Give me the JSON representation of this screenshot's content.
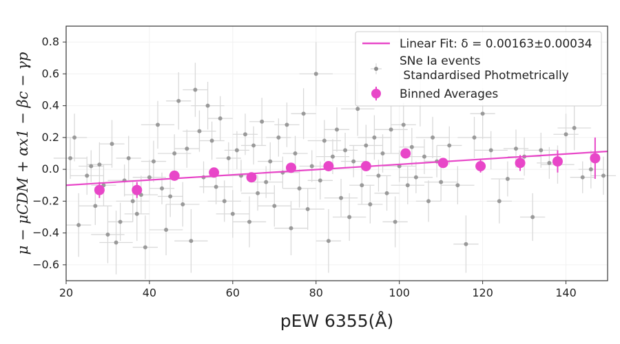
{
  "chart_data": {
    "type": "scatter",
    "xlabel": "pEW 6355(Å)",
    "ylabel": "μ − μCDM + αx1 − βc − γp",
    "xlim": [
      20,
      150
    ],
    "ylim": [
      -0.7,
      0.9
    ],
    "x_ticks": [
      20,
      40,
      60,
      80,
      100,
      120,
      140
    ],
    "y_ticks": [
      -0.6,
      -0.4,
      -0.2,
      0.0,
      0.2,
      0.4,
      0.6,
      0.8
    ],
    "grid": true,
    "legend_position": "top-right",
    "series": [
      {
        "name": "SNe Ia events\n Standardised Photmetrically",
        "kind": "errorbar-points",
        "color": "#8c8c8c",
        "errorbar_color": "#d9d9d9",
        "points": [
          {
            "x": 21,
            "y": 0.07,
            "xerr": 4,
            "yerr": 0.13
          },
          {
            "x": 22,
            "y": 0.2,
            "xerr": 3,
            "yerr": 0.15
          },
          {
            "x": 23,
            "y": -0.35,
            "xerr": 3,
            "yerr": 0.2
          },
          {
            "x": 25,
            "y": -0.04,
            "xerr": 4,
            "yerr": 0.12
          },
          {
            "x": 26,
            "y": 0.02,
            "xerr": 3,
            "yerr": 0.1
          },
          {
            "x": 27,
            "y": -0.23,
            "xerr": 4,
            "yerr": 0.12
          },
          {
            "x": 28,
            "y": 0.03,
            "xerr": 3,
            "yerr": 0.14
          },
          {
            "x": 29,
            "y": -0.1,
            "xerr": 3,
            "yerr": 0.13
          },
          {
            "x": 30,
            "y": -0.41,
            "xerr": 4,
            "yerr": 0.18
          },
          {
            "x": 31,
            "y": 0.16,
            "xerr": 3,
            "yerr": 0.15
          },
          {
            "x": 32,
            "y": -0.46,
            "xerr": 4,
            "yerr": 0.2
          },
          {
            "x": 33,
            "y": -0.33,
            "xerr": 3,
            "yerr": 0.12
          },
          {
            "x": 34,
            "y": -0.07,
            "xerr": 4,
            "yerr": 0.1
          },
          {
            "x": 35,
            "y": 0.07,
            "xerr": 3,
            "yerr": 0.14
          },
          {
            "x": 36,
            "y": -0.2,
            "xerr": 4,
            "yerr": 0.13
          },
          {
            "x": 37,
            "y": -0.28,
            "xerr": 3,
            "yerr": 0.17
          },
          {
            "x": 38,
            "y": -0.16,
            "xerr": 4,
            "yerr": 0.12
          },
          {
            "x": 39,
            "y": -0.49,
            "xerr": 3,
            "yerr": 0.2
          },
          {
            "x": 40,
            "y": -0.05,
            "xerr": 4,
            "yerr": 0.11
          },
          {
            "x": 41,
            "y": 0.05,
            "xerr": 3,
            "yerr": 0.13
          },
          {
            "x": 42,
            "y": 0.28,
            "xerr": 4,
            "yerr": 0.15
          },
          {
            "x": 43,
            "y": -0.12,
            "xerr": 3,
            "yerr": 0.1
          },
          {
            "x": 44,
            "y": -0.38,
            "xerr": 4,
            "yerr": 0.16
          },
          {
            "x": 45,
            "y": -0.17,
            "xerr": 3,
            "yerr": 0.13
          },
          {
            "x": 46,
            "y": 0.1,
            "xerr": 4,
            "yerr": 0.12
          },
          {
            "x": 47,
            "y": 0.43,
            "xerr": 3,
            "yerr": 0.18
          },
          {
            "x": 48,
            "y": -0.22,
            "xerr": 4,
            "yerr": 0.14
          },
          {
            "x": 49,
            "y": 0.13,
            "xerr": 3,
            "yerr": 0.12
          },
          {
            "x": 50,
            "y": -0.45,
            "xerr": 4,
            "yerr": 0.2
          },
          {
            "x": 51,
            "y": 0.5,
            "xerr": 3,
            "yerr": 0.17
          },
          {
            "x": 52,
            "y": 0.24,
            "xerr": 4,
            "yerr": 0.13
          },
          {
            "x": 53,
            "y": -0.05,
            "xerr": 3,
            "yerr": 0.1
          },
          {
            "x": 54,
            "y": 0.4,
            "xerr": 4,
            "yerr": 0.15
          },
          {
            "x": 55,
            "y": 0.18,
            "xerr": 3,
            "yerr": 0.12
          },
          {
            "x": 56,
            "y": -0.11,
            "xerr": 4,
            "yerr": 0.11
          },
          {
            "x": 57,
            "y": 0.32,
            "xerr": 3,
            "yerr": 0.14
          },
          {
            "x": 58,
            "y": -0.2,
            "xerr": 4,
            "yerr": 0.13
          },
          {
            "x": 59,
            "y": 0.07,
            "xerr": 3,
            "yerr": 0.1
          },
          {
            "x": 60,
            "y": -0.28,
            "xerr": 4,
            "yerr": 0.15
          },
          {
            "x": 61,
            "y": 0.12,
            "xerr": 3,
            "yerr": 0.12
          },
          {
            "x": 62,
            "y": -0.04,
            "xerr": 4,
            "yerr": 0.1
          },
          {
            "x": 63,
            "y": 0.22,
            "xerr": 3,
            "yerr": 0.13
          },
          {
            "x": 64,
            "y": -0.33,
            "xerr": 4,
            "yerr": 0.16
          },
          {
            "x": 65,
            "y": 0.15,
            "xerr": 3,
            "yerr": 0.12
          },
          {
            "x": 66,
            "y": -0.15,
            "xerr": 4,
            "yerr": 0.11
          },
          {
            "x": 67,
            "y": 0.3,
            "xerr": 3,
            "yerr": 0.15
          },
          {
            "x": 68,
            "y": -0.08,
            "xerr": 4,
            "yerr": 0.1
          },
          {
            "x": 69,
            "y": 0.05,
            "xerr": 3,
            "yerr": 0.12
          },
          {
            "x": 70,
            "y": -0.23,
            "xerr": 4,
            "yerr": 0.13
          },
          {
            "x": 71,
            "y": 0.2,
            "xerr": 3,
            "yerr": 0.12
          },
          {
            "x": 72,
            "y": -0.02,
            "xerr": 4,
            "yerr": 0.1
          },
          {
            "x": 73,
            "y": 0.28,
            "xerr": 3,
            "yerr": 0.14
          },
          {
            "x": 74,
            "y": -0.37,
            "xerr": 4,
            "yerr": 0.17
          },
          {
            "x": 75,
            "y": 0.1,
            "xerr": 3,
            "yerr": 0.11
          },
          {
            "x": 76,
            "y": -0.12,
            "xerr": 4,
            "yerr": 0.12
          },
          {
            "x": 77,
            "y": 0.35,
            "xerr": 3,
            "yerr": 0.16
          },
          {
            "x": 78,
            "y": -0.25,
            "xerr": 4,
            "yerr": 0.13
          },
          {
            "x": 79,
            "y": 0.02,
            "xerr": 3,
            "yerr": 0.1
          },
          {
            "x": 80,
            "y": 0.6,
            "xerr": 4,
            "yerr": 0.2
          },
          {
            "x": 81,
            "y": -0.07,
            "xerr": 3,
            "yerr": 0.12
          },
          {
            "x": 82,
            "y": 0.18,
            "xerr": 4,
            "yerr": 0.13
          },
          {
            "x": 83,
            "y": -0.45,
            "xerr": 3,
            "yerr": 0.2
          },
          {
            "x": 84,
            "y": 0.08,
            "xerr": 4,
            "yerr": 0.11
          },
          {
            "x": 85,
            "y": 0.25,
            "xerr": 3,
            "yerr": 0.14
          },
          {
            "x": 86,
            "y": -0.18,
            "xerr": 4,
            "yerr": 0.12
          },
          {
            "x": 87,
            "y": 0.12,
            "xerr": 3,
            "yerr": 0.11
          },
          {
            "x": 88,
            "y": -0.3,
            "xerr": 4,
            "yerr": 0.15
          },
          {
            "x": 89,
            "y": 0.05,
            "xerr": 3,
            "yerr": 0.1
          },
          {
            "x": 90,
            "y": 0.38,
            "xerr": 4,
            "yerr": 0.17
          },
          {
            "x": 91,
            "y": -0.1,
            "xerr": 3,
            "yerr": 0.12
          },
          {
            "x": 92,
            "y": 0.15,
            "xerr": 4,
            "yerr": 0.13
          },
          {
            "x": 93,
            "y": -0.22,
            "xerr": 3,
            "yerr": 0.12
          },
          {
            "x": 94,
            "y": 0.2,
            "xerr": 4,
            "yerr": 0.14
          },
          {
            "x": 95,
            "y": -0.04,
            "xerr": 3,
            "yerr": 0.1
          },
          {
            "x": 96,
            "y": 0.1,
            "xerr": 4,
            "yerr": 0.12
          },
          {
            "x": 97,
            "y": -0.15,
            "xerr": 3,
            "yerr": 0.11
          },
          {
            "x": 98,
            "y": 0.25,
            "xerr": 4,
            "yerr": 0.15
          },
          {
            "x": 99,
            "y": -0.33,
            "xerr": 3,
            "yerr": 0.16
          },
          {
            "x": 100,
            "y": 0.02,
            "xerr": 4,
            "yerr": 0.1
          },
          {
            "x": 101,
            "y": 0.28,
            "xerr": 3,
            "yerr": 0.14
          },
          {
            "x": 102,
            "y": -0.1,
            "xerr": 4,
            "yerr": 0.12
          },
          {
            "x": 103,
            "y": 0.14,
            "xerr": 3,
            "yerr": 0.12
          },
          {
            "x": 104,
            "y": -0.05,
            "xerr": 4,
            "yerr": 0.1
          },
          {
            "x": 105,
            "y": 0.45,
            "xerr": 3,
            "yerr": 0.18
          },
          {
            "x": 106,
            "y": 0.08,
            "xerr": 4,
            "yerr": 0.11
          },
          {
            "x": 107,
            "y": -0.2,
            "xerr": 3,
            "yerr": 0.13
          },
          {
            "x": 108,
            "y": 0.2,
            "xerr": 4,
            "yerr": 0.13
          },
          {
            "x": 109,
            "y": 0.05,
            "xerr": 3,
            "yerr": 0.1
          },
          {
            "x": 110,
            "y": -0.08,
            "xerr": 4,
            "yerr": 0.12
          },
          {
            "x": 112,
            "y": 0.15,
            "xerr": 3,
            "yerr": 0.12
          },
          {
            "x": 114,
            "y": -0.1,
            "xerr": 4,
            "yerr": 0.12
          },
          {
            "x": 116,
            "y": -0.47,
            "xerr": 3,
            "yerr": 0.18
          },
          {
            "x": 118,
            "y": 0.2,
            "xerr": 4,
            "yerr": 0.13
          },
          {
            "x": 120,
            "y": 0.35,
            "xerr": 3,
            "yerr": 0.16
          },
          {
            "x": 122,
            "y": 0.12,
            "xerr": 4,
            "yerr": 0.12
          },
          {
            "x": 124,
            "y": -0.2,
            "xerr": 3,
            "yerr": 0.14
          },
          {
            "x": 126,
            "y": -0.06,
            "xerr": 4,
            "yerr": 0.11
          },
          {
            "x": 128,
            "y": 0.13,
            "xerr": 3,
            "yerr": 0.12
          },
          {
            "x": 130,
            "y": 0.08,
            "xerr": 4,
            "yerr": 0.12
          },
          {
            "x": 132,
            "y": -0.3,
            "xerr": 3,
            "yerr": 0.15
          },
          {
            "x": 134,
            "y": 0.12,
            "xerr": 4,
            "yerr": 0.11
          },
          {
            "x": 136,
            "y": 0.04,
            "xerr": 3,
            "yerr": 0.1
          },
          {
            "x": 138,
            "y": 0.03,
            "xerr": 4,
            "yerr": 0.12
          },
          {
            "x": 140,
            "y": 0.22,
            "xerr": 3,
            "yerr": 0.13
          },
          {
            "x": 142,
            "y": 0.26,
            "xerr": 4,
            "yerr": 0.14
          },
          {
            "x": 144,
            "y": -0.05,
            "xerr": 3,
            "yerr": 0.1
          },
          {
            "x": 146,
            "y": 0.0,
            "xerr": 3,
            "yerr": 0.12
          },
          {
            "x": 149,
            "y": -0.04,
            "xerr": 3,
            "yerr": 0.12
          }
        ]
      },
      {
        "name": "Binned Averages",
        "kind": "errorbar-markers",
        "color": "#e846c8",
        "points": [
          {
            "x": 28,
            "y": -0.13,
            "yerr": 0.05
          },
          {
            "x": 37,
            "y": -0.13,
            "yerr": 0.05
          },
          {
            "x": 46,
            "y": -0.04,
            "yerr": 0.03
          },
          {
            "x": 55.5,
            "y": -0.02,
            "yerr": 0.03
          },
          {
            "x": 64.5,
            "y": -0.05,
            "yerr": 0.02
          },
          {
            "x": 74,
            "y": 0.01,
            "yerr": 0.03
          },
          {
            "x": 83,
            "y": 0.02,
            "yerr": 0.03
          },
          {
            "x": 92,
            "y": 0.02,
            "yerr": 0.03
          },
          {
            "x": 101.5,
            "y": 0.1,
            "yerr": 0.03
          },
          {
            "x": 110.5,
            "y": 0.04,
            "yerr": 0.03
          },
          {
            "x": 119.5,
            "y": 0.02,
            "yerr": 0.04
          },
          {
            "x": 129,
            "y": 0.04,
            "yerr": 0.05
          },
          {
            "x": 138,
            "y": 0.05,
            "yerr": 0.07
          },
          {
            "x": 147,
            "y": 0.07,
            "yerr": 0.13
          }
        ]
      },
      {
        "name": "Linear Fit: δ = 0.00163±0.00034",
        "kind": "line",
        "color": "#e846c8",
        "x": [
          20,
          150
        ],
        "y": [
          -0.1,
          0.113
        ]
      }
    ]
  }
}
